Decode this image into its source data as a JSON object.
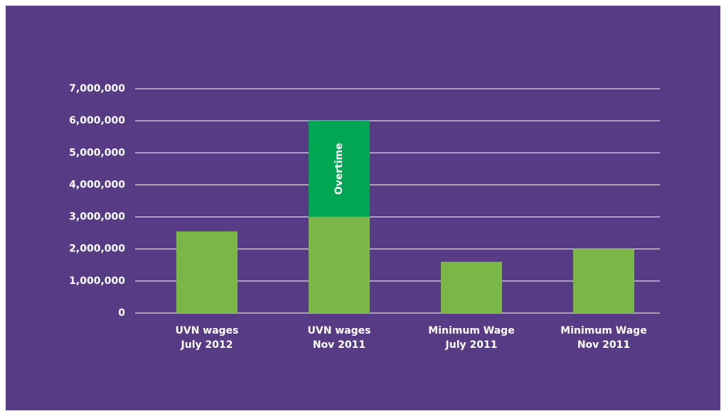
{
  "chart_data": {
    "type": "stacked_bar",
    "categories": [
      [
        "UVN wages",
        "July 2012"
      ],
      [
        "UVN wages",
        "Nov 2011"
      ],
      [
        "Minimum Wage",
        "July 2011"
      ],
      [
        "Minimum Wage",
        "Nov 2011"
      ]
    ],
    "series": [
      {
        "color": "#7ab648",
        "values": [
          2550000,
          3000000,
          1600000,
          2000000
        ]
      },
      {
        "name": "Overtime",
        "color": "#00a651",
        "values": [
          null,
          3000000,
          null,
          null
        ]
      }
    ],
    "ylim": [
      0,
      7000000
    ],
    "yticks": [
      {
        "value": 0,
        "label": "0"
      },
      {
        "value": 1000000,
        "label": "1,000,000"
      },
      {
        "value": 2000000,
        "label": "2,000,000"
      },
      {
        "value": 3000000,
        "label": "3,000,000"
      },
      {
        "value": 4000000,
        "label": "4,000,000"
      },
      {
        "value": 5000000,
        "label": "5,000,000"
      },
      {
        "value": 6000000,
        "label": "6,000,000"
      },
      {
        "value": 7000000,
        "label": "7,000,000"
      }
    ],
    "grid": true
  }
}
